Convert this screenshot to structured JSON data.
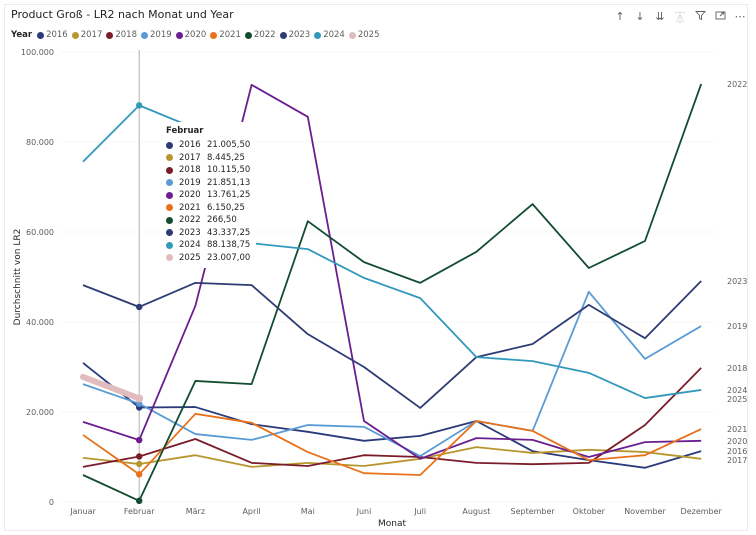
{
  "chart_data": {
    "type": "line",
    "title": "Product Groß - LR2 nach Monat und Year",
    "xlabel": "Monat",
    "ylabel": "Durchschnitt von LR2",
    "ylim": [
      0,
      100000
    ],
    "yticks": [
      0,
      20000,
      40000,
      60000,
      80000,
      100000
    ],
    "ytick_labels": [
      "0",
      "20.000",
      "40.000",
      "60.000",
      "80.000",
      "100.000"
    ],
    "grid": true,
    "legend_title": "Year",
    "legend_position": "top-left",
    "categories": [
      "Januar",
      "Februar",
      "März",
      "April",
      "Mai",
      "Juni",
      "Juli",
      "August",
      "September",
      "Oktober",
      "November",
      "Dezember"
    ],
    "series": [
      {
        "name": "2016",
        "color": "#2b3a7a",
        "values": [
          30900,
          21005.5,
          21100,
          17300,
          15600,
          13600,
          14700,
          18000,
          11300,
          9300,
          7600,
          11300
        ]
      },
      {
        "name": "2017",
        "color": "#b8962e",
        "values": [
          9800,
          8445.25,
          10400,
          7800,
          8700,
          8000,
          9600,
          12200,
          10900,
          11600,
          11100,
          9600
        ]
      },
      {
        "name": "2018",
        "color": "#7b1c2b",
        "values": [
          7800,
          10115.5,
          14000,
          8700,
          8000,
          10400,
          10000,
          8700,
          8400,
          8700,
          17100,
          29800
        ]
      },
      {
        "name": "2019",
        "color": "#5b9bd5",
        "values": [
          26200,
          21851.13,
          15100,
          13800,
          17100,
          16700,
          10200,
          18000,
          15800,
          46700,
          31800,
          39100
        ]
      },
      {
        "name": "2020",
        "color": "#6b1e8f",
        "values": [
          17800,
          13761.25,
          43600,
          92700,
          85600,
          18000,
          9600,
          14200,
          13800,
          10000,
          13300,
          13600
        ]
      },
      {
        "name": "2021",
        "color": "#e8711a",
        "values": [
          14900,
          6150.25,
          19600,
          17600,
          11100,
          6400,
          6000,
          18000,
          15800,
          9300,
          10400,
          16200
        ]
      },
      {
        "name": "2022",
        "color": "#124d30",
        "values": [
          6000,
          266.5,
          26900,
          26200,
          62400,
          53300,
          48700,
          55600,
          66200,
          52000,
          58000,
          92900
        ]
      },
      {
        "name": "2023",
        "color": "#2f3b73",
        "values": [
          48200,
          43337.25,
          48700,
          48200,
          37300,
          30000,
          20900,
          32200,
          35100,
          43800,
          36400,
          49100
        ]
      },
      {
        "name": "2024",
        "color": "#3399bb",
        "values": [
          75600,
          88138.75,
          83000,
          57500,
          56200,
          49800,
          45300,
          32200,
          31300,
          28700,
          23100,
          24900
        ]
      },
      {
        "name": "2025",
        "color": "#e0bcbf",
        "values": [
          27800,
          23007.0,
          null,
          null,
          null,
          null,
          null,
          null,
          null,
          null,
          null,
          null
        ]
      }
    ],
    "end_labels_order": [
      "2022",
      "2023",
      "2019",
      "2018",
      "2024",
      "2025",
      "2021",
      "2020",
      "2016",
      "2017"
    ],
    "hover_category": "Februar",
    "tooltip": {
      "header": "Februar",
      "rows": [
        {
          "year": "2016",
          "value": "21.005,50"
        },
        {
          "year": "2017",
          "value": "8.445,25"
        },
        {
          "year": "2018",
          "value": "10.115,50"
        },
        {
          "year": "2019",
          "value": "21.851,13"
        },
        {
          "year": "2020",
          "value": "13.761,25"
        },
        {
          "year": "2021",
          "value": "6.150,25"
        },
        {
          "year": "2022",
          "value": "266,50"
        },
        {
          "year": "2023",
          "value": "43.337,25"
        },
        {
          "year": "2024",
          "value": "88.138,75"
        },
        {
          "year": "2025",
          "value": "23.007,00"
        }
      ]
    }
  },
  "header": {
    "title": "Product Groß - LR2 nach Monat und Year"
  },
  "toolbar": {
    "icons": [
      "sort-ascending-icon",
      "sort-descending-icon",
      "expand-all-down-icon",
      "drill-hierarchy-icon",
      "filter-icon",
      "focus-mode-icon",
      "more-options-icon"
    ]
  }
}
